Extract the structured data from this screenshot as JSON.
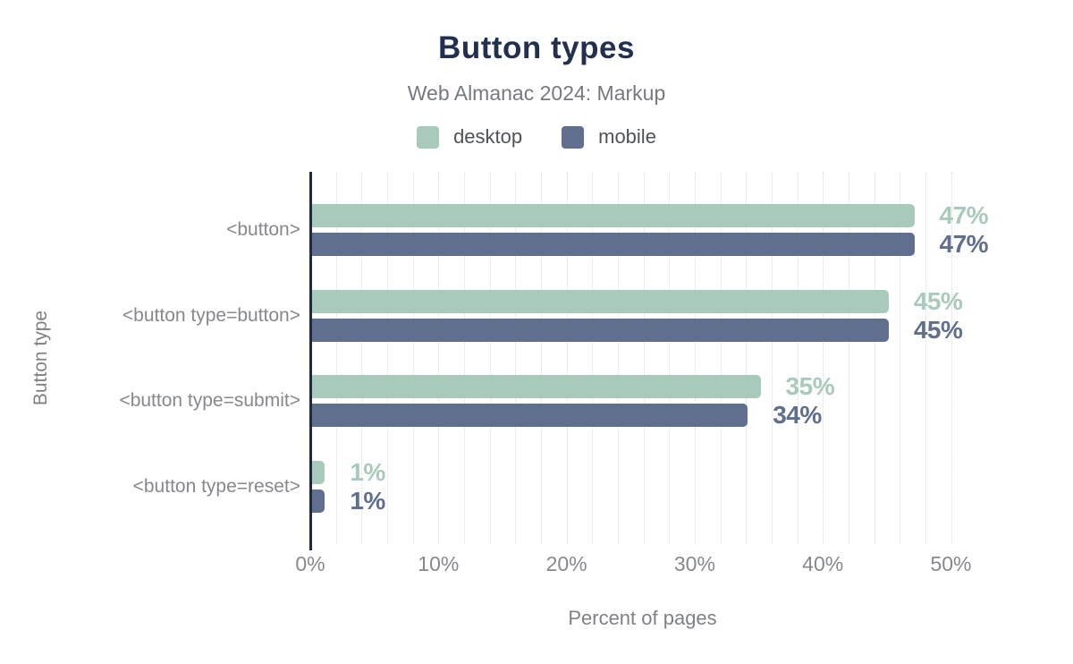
{
  "chart": {
    "title": "Button types",
    "subtitle": "Web Almanac 2024: Markup"
  },
  "chart_data": {
    "type": "bar",
    "orientation": "horizontal",
    "title": "Button types",
    "subtitle": "Web Almanac 2024: Markup",
    "xlabel": "Percent of pages",
    "ylabel": "Button type",
    "categories": [
      "<button>",
      "<button type=button>",
      "<button type=submit>",
      "<button type=reset>"
    ],
    "series": [
      {
        "name": "desktop",
        "color": "#a8cabb",
        "values": [
          47,
          45,
          35,
          1
        ],
        "labels": [
          "47%",
          "45%",
          "35%",
          "1%"
        ]
      },
      {
        "name": "mobile",
        "color": "#5f6f8d",
        "values": [
          47,
          45,
          34,
          1
        ],
        "labels": [
          "47%",
          "45%",
          "34%",
          "1%"
        ]
      }
    ],
    "x_ticks": [
      0,
      10,
      20,
      30,
      40,
      50
    ],
    "x_tick_labels": [
      "0%",
      "10%",
      "20%",
      "30%",
      "40%",
      "50%"
    ],
    "xlim": [
      0,
      51.8
    ],
    "grid": {
      "minor_step_pct": 2,
      "major_step_pct": 10
    },
    "legend_position": "top"
  },
  "colors": {
    "title": "#22304f",
    "subtitle": "#76797e",
    "axis_line": "#1d2a42",
    "gridline_minor": "#ededee",
    "gridline_major": "#d7d8da",
    "desktop": "#a8cabb",
    "mobile": "#5f6f8d",
    "tick_text": "#85888d",
    "background": "#ffffff"
  }
}
